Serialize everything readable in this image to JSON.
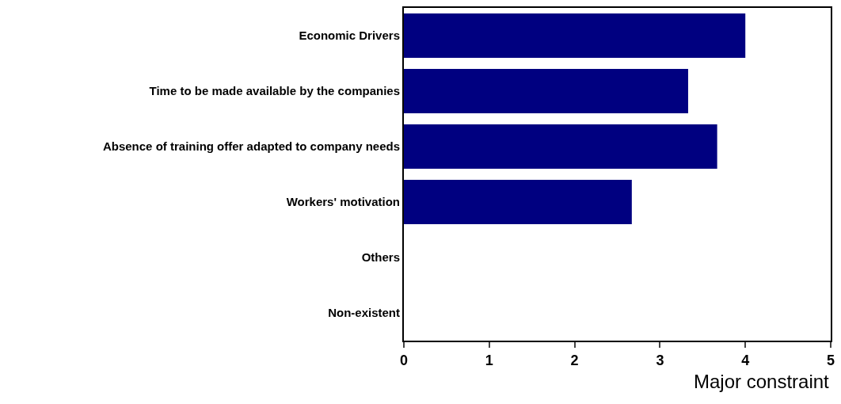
{
  "chart_data": {
    "type": "bar",
    "orientation": "horizontal",
    "xlabel": "Major constraint",
    "categories": [
      "Economic Drivers",
      "Time to be made available by the companies",
      "Absence of training offer adapted to company needs",
      "Workers' motivation",
      "Others",
      "Non-existent"
    ],
    "values": [
      4,
      3.33,
      3.67,
      2.67,
      0,
      0
    ],
    "color": "#000080",
    "xlim": [
      0,
      5
    ],
    "xticks": [
      0,
      1,
      2,
      3,
      4,
      5
    ],
    "legend": false
  }
}
